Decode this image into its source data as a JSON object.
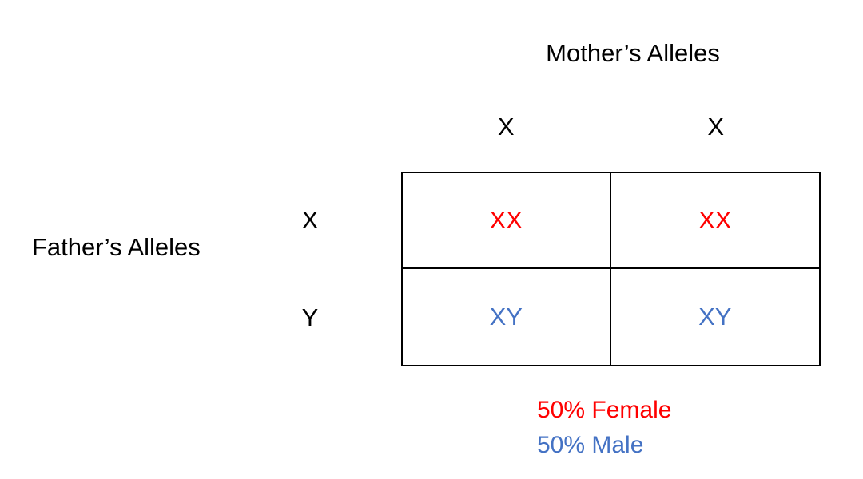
{
  "diagram": {
    "title_mother": "Mother’s Alleles",
    "title_father": "Father’s Alleles",
    "column_headers": [
      "X",
      "X"
    ],
    "row_headers": [
      "X",
      "Y"
    ],
    "cells": [
      {
        "genotype": "XX",
        "sex": "female"
      },
      {
        "genotype": "XX",
        "sex": "female"
      },
      {
        "genotype": "XY",
        "sex": "male"
      },
      {
        "genotype": "XY",
        "sex": "male"
      }
    ],
    "legend": [
      {
        "label": "50% Female",
        "color": "#ff0000"
      },
      {
        "label": "50% Male",
        "color": "#4472c4"
      }
    ],
    "colors": {
      "female": "#ff0000",
      "male": "#4472c4",
      "label_text": "#000000",
      "grid_line": "#000000",
      "background": "#ffffff"
    }
  }
}
